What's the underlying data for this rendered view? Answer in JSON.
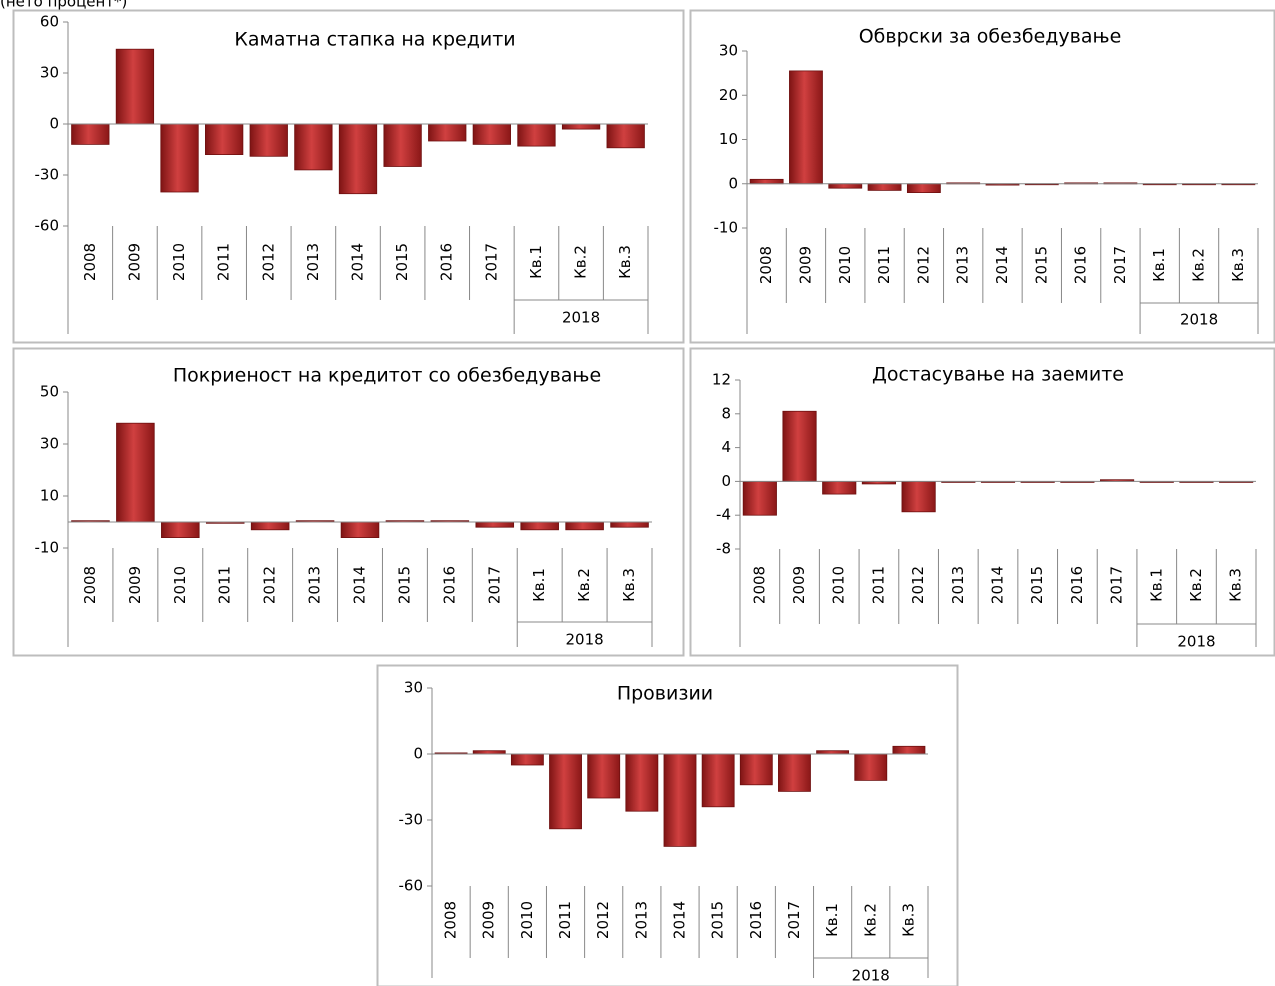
{
  "caption": "(нето процент*)",
  "chart_data": [
    {
      "type": "bar",
      "title": "Каматна стапка на кредити",
      "categories": [
        "2008",
        "2009",
        "2010",
        "2011",
        "2012",
        "2013",
        "2014",
        "2015",
        "2016",
        "2017",
        "Кв.1",
        "Кв.2",
        "Кв.3"
      ],
      "group_label": "2018",
      "values": [
        -12,
        44,
        -40,
        -18,
        -19,
        -27,
        -41,
        -25,
        -10,
        -12,
        -13,
        -3,
        -14
      ],
      "color": "#b42424",
      "ylim": [
        -60,
        60
      ],
      "yticks": [
        -60,
        -30,
        0,
        30,
        60
      ]
    },
    {
      "type": "bar",
      "title": "Обврски за обезбедување",
      "categories": [
        "2008",
        "2009",
        "2010",
        "2011",
        "2012",
        "2013",
        "2014",
        "2015",
        "2016",
        "2017",
        "Кв.1",
        "Кв.2",
        "Кв.3"
      ],
      "group_label": "2018",
      "values": [
        1,
        25.5,
        -1,
        -1.5,
        -2,
        0.2,
        -0.3,
        0,
        0.2,
        0.2,
        0,
        0,
        0
      ],
      "color": "#b42424",
      "ylim": [
        -10,
        30
      ],
      "yticks": [
        -10,
        0,
        10,
        20,
        30
      ]
    },
    {
      "type": "bar",
      "title": "Покриеност на кредитот со обезбедување",
      "categories": [
        "2008",
        "2009",
        "2010",
        "2011",
        "2012",
        "2013",
        "2014",
        "2015",
        "2016",
        "2017",
        "Кв.1",
        "Кв.2",
        "Кв.3"
      ],
      "group_label": "2018",
      "values": [
        0.5,
        38,
        -6,
        -0.5,
        -3,
        0.5,
        -6,
        0.5,
        0.5,
        -2,
        -3,
        -3,
        -2
      ],
      "color": "#b42424",
      "ylim": [
        -10,
        50
      ],
      "yticks": [
        -10,
        10,
        30,
        50
      ]
    },
    {
      "type": "bar",
      "title": "Достасување на заемите",
      "categories": [
        "2008",
        "2009",
        "2010",
        "2011",
        "2012",
        "2013",
        "2014",
        "2015",
        "2016",
        "2017",
        "Кв.1",
        "Кв.2",
        "Кв.3"
      ],
      "group_label": "2018",
      "values": [
        -4,
        8.3,
        -1.5,
        -0.3,
        -3.6,
        0,
        0,
        0,
        0,
        0.2,
        0,
        0,
        0
      ],
      "color": "#b42424",
      "ylim": [
        -8,
        12
      ],
      "yticks": [
        -8,
        -4,
        0,
        4,
        8,
        12
      ]
    },
    {
      "type": "bar",
      "title": "Провизии",
      "categories": [
        "2008",
        "2009",
        "2010",
        "2011",
        "2012",
        "2013",
        "2014",
        "2015",
        "2016",
        "2017",
        "Кв.1",
        "Кв.2",
        "Кв.3"
      ],
      "group_label": "2018",
      "values": [
        0.5,
        1.5,
        -5,
        -34,
        -20,
        -26,
        -42,
        -24,
        -14,
        -17,
        1.5,
        -12,
        3.5
      ],
      "color": "#b42424",
      "ylim": [
        -60,
        30
      ],
      "yticks": [
        -60,
        -30,
        0,
        30
      ]
    }
  ]
}
